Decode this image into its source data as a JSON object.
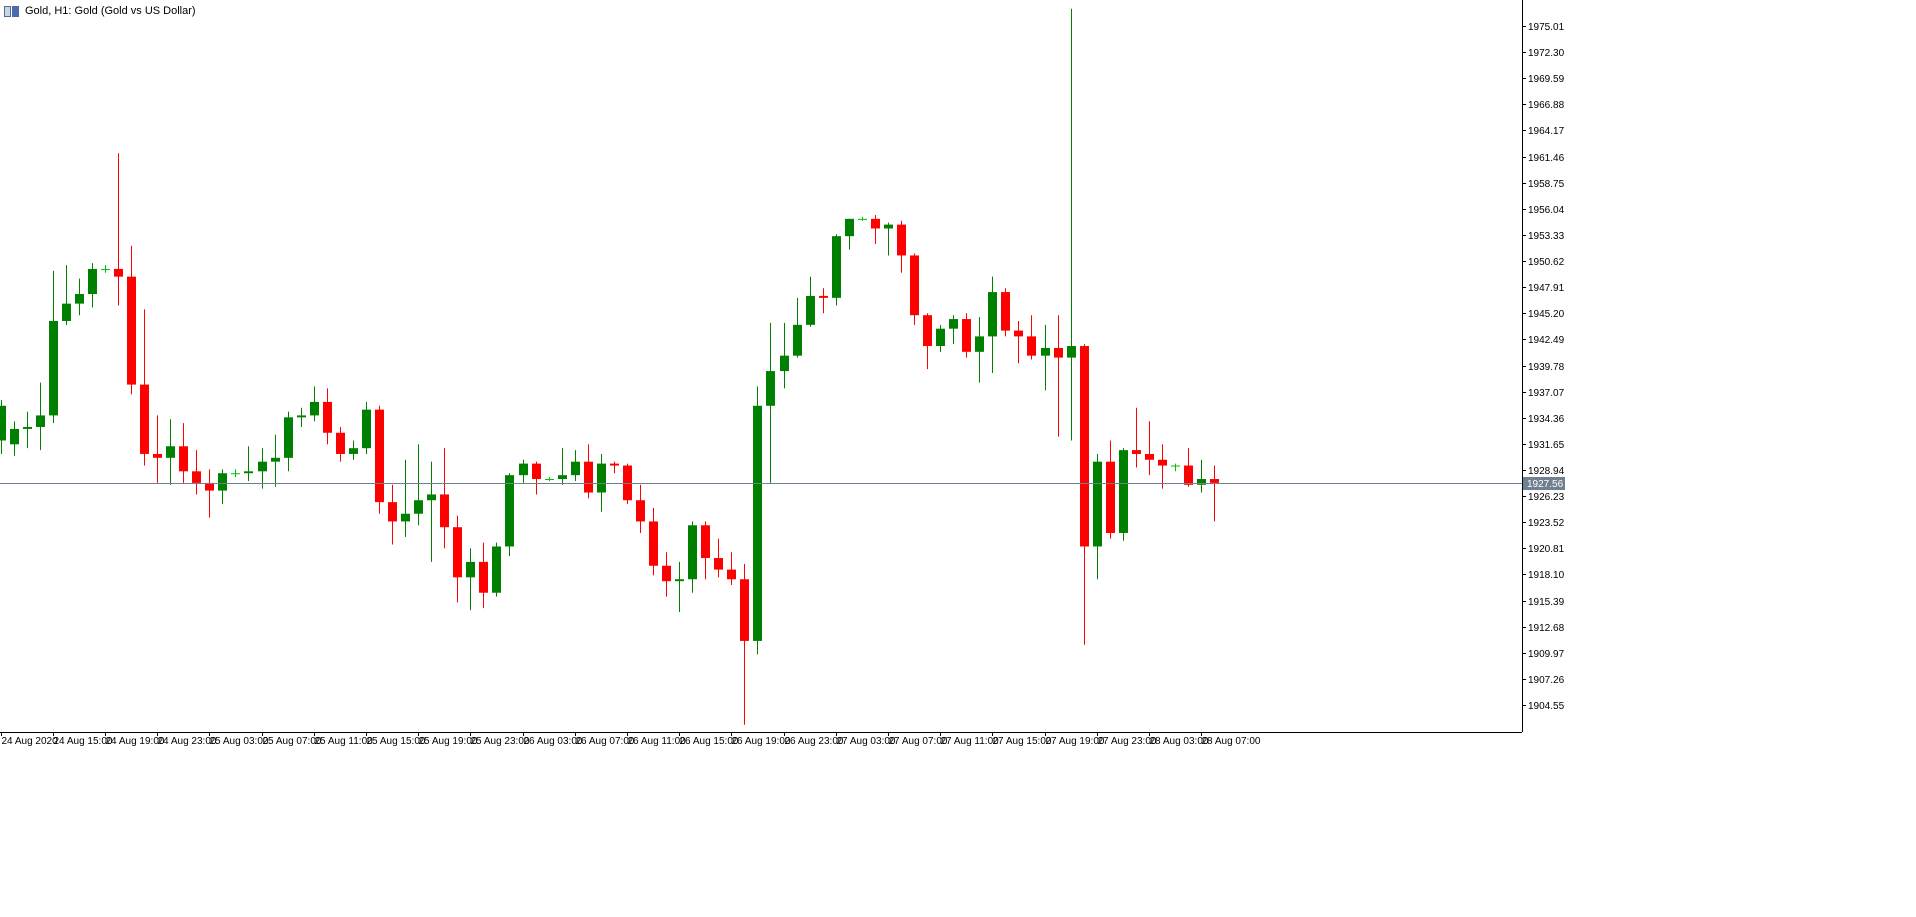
{
  "window": {
    "title": "Gold, H1:  Gold (Gold vs US Dollar)"
  },
  "colors": {
    "bull": "#008000",
    "bear": "#ff0000",
    "doji": "#00c000",
    "axis": "#000000",
    "price_line": "#708090",
    "price_tag_bg": "#708090"
  },
  "icons": [
    "chart-window-icon"
  ],
  "chart_data": {
    "type": "candlestick",
    "symbol": "Gold",
    "timeframe": "H1",
    "title": "Gold, H1:  Gold (Gold vs US Dollar)",
    "ylim": [
      1902.3,
      1977.5
    ],
    "y_ticks": [
      "1975.01",
      "1972.30",
      "1969.59",
      "1966.88",
      "1964.17",
      "1961.46",
      "1958.75",
      "1956.04",
      "1953.33",
      "1950.62",
      "1947.91",
      "1945.20",
      "1942.49",
      "1939.78",
      "1937.07",
      "1934.36",
      "1931.65",
      "1928.94",
      "1926.23",
      "1923.52",
      "1920.81",
      "1918.10",
      "1915.39",
      "1912.68",
      "1909.97",
      "1907.26",
      "1904.55"
    ],
    "x_ticks": [
      {
        "i": 0,
        "label": "24 Aug 2020"
      },
      {
        "i": 4,
        "label": "24 Aug 15:00"
      },
      {
        "i": 8,
        "label": "24 Aug 19:00"
      },
      {
        "i": 12,
        "label": "24 Aug 23:00"
      },
      {
        "i": 16,
        "label": "25 Aug 03:00"
      },
      {
        "i": 20,
        "label": "25 Aug 07:00"
      },
      {
        "i": 24,
        "label": "25 Aug 11:00"
      },
      {
        "i": 28,
        "label": "25 Aug 15:00"
      },
      {
        "i": 32,
        "label": "25 Aug 19:00"
      },
      {
        "i": 36,
        "label": "25 Aug 23:00"
      },
      {
        "i": 40,
        "label": "26 Aug 03:00"
      },
      {
        "i": 44,
        "label": "26 Aug 07:00"
      },
      {
        "i": 48,
        "label": "26 Aug 11:00"
      },
      {
        "i": 52,
        "label": "26 Aug 15:00"
      },
      {
        "i": 56,
        "label": "26 Aug 19:00"
      },
      {
        "i": 60,
        "label": "26 Aug 23:00"
      },
      {
        "i": 64,
        "label": "27 Aug 03:00"
      },
      {
        "i": 68,
        "label": "27 Aug 07:00"
      },
      {
        "i": 72,
        "label": "27 Aug 11:00"
      },
      {
        "i": 76,
        "label": "27 Aug 15:00"
      },
      {
        "i": 80,
        "label": "27 Aug 19:00"
      },
      {
        "i": 84,
        "label": "27 Aug 23:00"
      },
      {
        "i": 88,
        "label": "28 Aug 03:00"
      },
      {
        "i": 92,
        "label": "28 Aug 07:00"
      }
    ],
    "current_price": "1927.56",
    "candles": [
      {
        "o": 1932.0,
        "h": 1936.2,
        "l": 1930.6,
        "c": 1935.6
      },
      {
        "o": 1931.6,
        "h": 1934.0,
        "l": 1930.4,
        "c": 1933.2
      },
      {
        "o": 1933.2,
        "h": 1935.0,
        "l": 1931.2,
        "c": 1933.4
      },
      {
        "o": 1933.4,
        "h": 1938.0,
        "l": 1931.0,
        "c": 1934.6
      },
      {
        "o": 1934.6,
        "h": 1949.6,
        "l": 1933.8,
        "c": 1944.4
      },
      {
        "o": 1944.4,
        "h": 1950.2,
        "l": 1944.0,
        "c": 1946.2
      },
      {
        "o": 1946.2,
        "h": 1948.8,
        "l": 1945.0,
        "c": 1947.2
      },
      {
        "o": 1947.2,
        "h": 1950.4,
        "l": 1945.8,
        "c": 1949.8
      },
      {
        "o": 1949.8,
        "h": 1950.2,
        "l": 1949.4,
        "c": 1949.8
      },
      {
        "o": 1949.8,
        "h": 1961.8,
        "l": 1946.0,
        "c": 1949.0
      },
      {
        "o": 1949.0,
        "h": 1952.2,
        "l": 1936.8,
        "c": 1937.8
      },
      {
        "o": 1937.8,
        "h": 1945.6,
        "l": 1929.4,
        "c": 1930.6
      },
      {
        "o": 1930.6,
        "h": 1934.6,
        "l": 1927.6,
        "c": 1930.2
      },
      {
        "o": 1930.2,
        "h": 1934.2,
        "l": 1927.4,
        "c": 1931.4
      },
      {
        "o": 1931.4,
        "h": 1933.8,
        "l": 1927.6,
        "c": 1928.8
      },
      {
        "o": 1928.8,
        "h": 1931.0,
        "l": 1926.4,
        "c": 1927.6
      },
      {
        "o": 1927.6,
        "h": 1929.0,
        "l": 1924.0,
        "c": 1926.8
      },
      {
        "o": 1926.8,
        "h": 1929.0,
        "l": 1925.4,
        "c": 1928.6
      },
      {
        "o": 1928.6,
        "h": 1929.0,
        "l": 1928.2,
        "c": 1928.6
      },
      {
        "o": 1928.6,
        "h": 1931.4,
        "l": 1927.8,
        "c": 1928.8
      },
      {
        "o": 1928.8,
        "h": 1931.2,
        "l": 1927.0,
        "c": 1929.8
      },
      {
        "o": 1929.8,
        "h": 1932.6,
        "l": 1927.2,
        "c": 1930.2
      },
      {
        "o": 1930.2,
        "h": 1935.0,
        "l": 1928.8,
        "c": 1934.4
      },
      {
        "o": 1934.4,
        "h": 1935.4,
        "l": 1933.4,
        "c": 1934.6
      },
      {
        "o": 1934.6,
        "h": 1937.6,
        "l": 1934.0,
        "c": 1936.0
      },
      {
        "o": 1936.0,
        "h": 1937.4,
        "l": 1931.6,
        "c": 1932.8
      },
      {
        "o": 1932.8,
        "h": 1933.4,
        "l": 1929.8,
        "c": 1930.6
      },
      {
        "o": 1930.6,
        "h": 1932.0,
        "l": 1930.0,
        "c": 1931.2
      },
      {
        "o": 1931.2,
        "h": 1936.0,
        "l": 1930.6,
        "c": 1935.2
      },
      {
        "o": 1935.2,
        "h": 1935.6,
        "l": 1924.4,
        "c": 1925.6
      },
      {
        "o": 1925.6,
        "h": 1927.4,
        "l": 1921.2,
        "c": 1923.6
      },
      {
        "o": 1923.6,
        "h": 1930.0,
        "l": 1922.0,
        "c": 1924.4
      },
      {
        "o": 1924.4,
        "h": 1931.6,
        "l": 1923.2,
        "c": 1925.8
      },
      {
        "o": 1925.8,
        "h": 1929.8,
        "l": 1919.4,
        "c": 1926.4
      },
      {
        "o": 1926.4,
        "h": 1931.2,
        "l": 1920.8,
        "c": 1923.0
      },
      {
        "o": 1923.0,
        "h": 1924.2,
        "l": 1915.2,
        "c": 1917.8
      },
      {
        "o": 1917.8,
        "h": 1920.8,
        "l": 1914.4,
        "c": 1919.4
      },
      {
        "o": 1919.4,
        "h": 1921.4,
        "l": 1914.6,
        "c": 1916.2
      },
      {
        "o": 1916.2,
        "h": 1921.4,
        "l": 1915.8,
        "c": 1921.0
      },
      {
        "o": 1921.0,
        "h": 1928.6,
        "l": 1920.0,
        "c": 1928.4
      },
      {
        "o": 1928.4,
        "h": 1930.0,
        "l": 1927.6,
        "c": 1929.6
      },
      {
        "o": 1929.6,
        "h": 1929.8,
        "l": 1926.4,
        "c": 1928.0
      },
      {
        "o": 1928.0,
        "h": 1928.2,
        "l": 1927.8,
        "c": 1928.0
      },
      {
        "o": 1928.0,
        "h": 1931.2,
        "l": 1927.4,
        "c": 1928.4
      },
      {
        "o": 1928.4,
        "h": 1931.0,
        "l": 1927.8,
        "c": 1929.8
      },
      {
        "o": 1929.8,
        "h": 1931.6,
        "l": 1926.0,
        "c": 1926.6
      },
      {
        "o": 1926.6,
        "h": 1930.6,
        "l": 1924.6,
        "c": 1929.6
      },
      {
        "o": 1929.6,
        "h": 1929.8,
        "l": 1928.6,
        "c": 1929.4
      },
      {
        "o": 1929.4,
        "h": 1929.6,
        "l": 1925.4,
        "c": 1925.8
      },
      {
        "o": 1925.8,
        "h": 1927.4,
        "l": 1922.4,
        "c": 1923.6
      },
      {
        "o": 1923.6,
        "h": 1925.0,
        "l": 1918.0,
        "c": 1919.0
      },
      {
        "o": 1919.0,
        "h": 1920.4,
        "l": 1915.8,
        "c": 1917.4
      },
      {
        "o": 1917.4,
        "h": 1919.4,
        "l": 1914.2,
        "c": 1917.6
      },
      {
        "o": 1917.6,
        "h": 1923.6,
        "l": 1916.2,
        "c": 1923.2
      },
      {
        "o": 1923.2,
        "h": 1923.6,
        "l": 1917.6,
        "c": 1919.8
      },
      {
        "o": 1919.8,
        "h": 1921.8,
        "l": 1917.8,
        "c": 1918.6
      },
      {
        "o": 1918.6,
        "h": 1920.4,
        "l": 1917.0,
        "c": 1917.6
      },
      {
        "o": 1917.6,
        "h": 1919.2,
        "l": 1902.5,
        "c": 1911.2
      },
      {
        "o": 1911.2,
        "h": 1937.6,
        "l": 1909.8,
        "c": 1935.6
      },
      {
        "o": 1935.6,
        "h": 1944.2,
        "l": 1927.6,
        "c": 1939.2
      },
      {
        "o": 1939.2,
        "h": 1944.2,
        "l": 1937.4,
        "c": 1940.8
      },
      {
        "o": 1940.8,
        "h": 1946.8,
        "l": 1940.6,
        "c": 1944.0
      },
      {
        "o": 1944.0,
        "h": 1949.0,
        "l": 1943.8,
        "c": 1947.0
      },
      {
        "o": 1947.0,
        "h": 1947.8,
        "l": 1945.2,
        "c": 1946.8
      },
      {
        "o": 1946.8,
        "h": 1953.4,
        "l": 1946.0,
        "c": 1953.2
      },
      {
        "o": 1953.2,
        "h": 1955.0,
        "l": 1951.8,
        "c": 1955.0
      },
      {
        "o": 1955.0,
        "h": 1955.2,
        "l": 1954.8,
        "c": 1955.0
      },
      {
        "o": 1955.0,
        "h": 1955.4,
        "l": 1952.4,
        "c": 1954.0
      },
      {
        "o": 1954.0,
        "h": 1954.6,
        "l": 1951.2,
        "c": 1954.4
      },
      {
        "o": 1954.4,
        "h": 1954.8,
        "l": 1949.4,
        "c": 1951.2
      },
      {
        "o": 1951.2,
        "h": 1951.4,
        "l": 1944.0,
        "c": 1945.0
      },
      {
        "o": 1945.0,
        "h": 1945.2,
        "l": 1939.4,
        "c": 1941.8
      },
      {
        "o": 1941.8,
        "h": 1944.0,
        "l": 1941.2,
        "c": 1943.6
      },
      {
        "o": 1943.6,
        "h": 1945.0,
        "l": 1942.0,
        "c": 1944.6
      },
      {
        "o": 1944.6,
        "h": 1945.2,
        "l": 1940.6,
        "c": 1941.2
      },
      {
        "o": 1941.2,
        "h": 1944.8,
        "l": 1938.0,
        "c": 1942.8
      },
      {
        "o": 1942.8,
        "h": 1949.0,
        "l": 1939.0,
        "c": 1947.4
      },
      {
        "o": 1947.4,
        "h": 1947.8,
        "l": 1942.8,
        "c": 1943.4
      },
      {
        "o": 1943.4,
        "h": 1944.4,
        "l": 1940.0,
        "c": 1942.8
      },
      {
        "o": 1942.8,
        "h": 1945.0,
        "l": 1940.4,
        "c": 1940.8
      },
      {
        "o": 1940.8,
        "h": 1944.0,
        "l": 1937.2,
        "c": 1941.6
      },
      {
        "o": 1941.6,
        "h": 1945.0,
        "l": 1932.4,
        "c": 1940.6
      },
      {
        "o": 1940.6,
        "h": 1976.8,
        "l": 1932.0,
        "c": 1941.8
      },
      {
        "o": 1941.8,
        "h": 1942.0,
        "l": 1910.8,
        "c": 1921.0
      },
      {
        "o": 1921.0,
        "h": 1930.6,
        "l": 1917.6,
        "c": 1929.8
      },
      {
        "o": 1929.8,
        "h": 1932.0,
        "l": 1921.8,
        "c": 1922.4
      },
      {
        "o": 1922.4,
        "h": 1931.2,
        "l": 1921.6,
        "c": 1931.0
      },
      {
        "o": 1931.0,
        "h": 1935.4,
        "l": 1929.2,
        "c": 1930.6
      },
      {
        "o": 1930.6,
        "h": 1934.0,
        "l": 1928.4,
        "c": 1930.0
      },
      {
        "o": 1930.0,
        "h": 1931.6,
        "l": 1927.0,
        "c": 1929.4
      },
      {
        "o": 1929.4,
        "h": 1929.6,
        "l": 1928.8,
        "c": 1929.4
      },
      {
        "o": 1929.4,
        "h": 1931.2,
        "l": 1927.2,
        "c": 1927.4
      },
      {
        "o": 1927.4,
        "h": 1930.0,
        "l": 1926.6,
        "c": 1928.0
      },
      {
        "o": 1928.0,
        "h": 1929.4,
        "l": 1923.6,
        "c": 1927.6
      }
    ]
  }
}
